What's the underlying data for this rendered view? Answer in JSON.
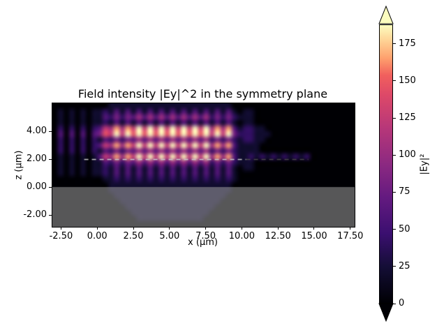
{
  "chart_data": {
    "type": "heatmap",
    "title": "Field intensity |Ey|^2 in the symmetry plane",
    "xlabel": "x (µm)",
    "ylabel": "z (µm)",
    "x_ticks": [
      -2.5,
      0,
      2.5,
      5,
      7.5,
      10,
      12.5,
      15,
      17.5
    ],
    "x_tick_labels": [
      "-2.50",
      "0.00",
      "2.50",
      "5.00",
      "7.50",
      "10.00",
      "12.50",
      "15.00",
      "17.50"
    ],
    "y_ticks": [
      -2,
      0,
      2,
      4
    ],
    "y_tick_labels": [
      "-2.00",
      "0.00",
      "2.00",
      "4.00"
    ],
    "x_range": [
      -3.1,
      17.8
    ],
    "z_range": [
      -2.85,
      6.0
    ],
    "colormap": "magma",
    "colormap_stops": [
      [
        0.0,
        "#000004"
      ],
      [
        0.13,
        "#140e36"
      ],
      [
        0.25,
        "#3b0f70"
      ],
      [
        0.38,
        "#641a80"
      ],
      [
        0.5,
        "#8c2981"
      ],
      [
        0.63,
        "#b73779"
      ],
      [
        0.75,
        "#de4968"
      ],
      [
        0.82,
        "#f1605d"
      ],
      [
        0.88,
        "#fe9f6d"
      ],
      [
        0.94,
        "#fecf92"
      ],
      [
        1.0,
        "#fcfdbf"
      ]
    ],
    "value_max": 195,
    "grid_digit_scale": "digit d = intensity d/9*value_max",
    "grid_rows_top_to_bottom": [
      "000000000011111111111111111111110000000000000000000000",
      "010101011213131313131313131313131011000000000000000000",
      "010101011324243535353535353524242111000000000000000000",
      "010101011213131313131313131313131011000000000000000000",
      "020202023658586969696969696958583122110000000000000000",
      "030303034769697979797979797969694222111000000000000000",
      "020202021324243535353535353524242122110000000000000000",
      "020202023658586969696969696958583111100000000000000000",
      "020202021324243535353535353524242111100000000000000000",
      "010101013658586969696969696958583112121212121200000000",
      "010101011324243535353535353524242111000000000000000000",
      "010101011213131313131313131313131011000000000000000000",
      "010101011213131313131313131313131000000000000000000000",
      "000000000112121212121212121212121000000000000000000000",
      "000000000011111111111111111111110000000000000000000000",
      "000000000011111111111111111111110000000000000000000000",
      "000000000001111111111111111111100000000000000000000000",
      "000000000000111111111111111111000000000000000000000000",
      "000000000000011111111111111110000000000000000000000000",
      "000000000000001111111111111100000000000000000000000000",
      "000000000000000111111111111000000000000000000000000000",
      "000000000000000000000000000000000000000000000000000000"
    ],
    "overlays": {
      "substrate": {
        "z_top": 0.0,
        "color": "rgba(158,158,158,0.55)"
      },
      "dashed_line": {
        "z": 2.0,
        "x_start": -0.9,
        "x_end": 10.3,
        "color": "#c9c9c9",
        "x_end_faint": 14.6,
        "faint_color": "#4a4a4a"
      }
    },
    "colorbar": {
      "label": "|Ey|²",
      "ticks": [
        0,
        25,
        50,
        75,
        100,
        125,
        150,
        175
      ],
      "vmin": 0,
      "vmax": 188,
      "extend": "both",
      "over_color": "#fcfdbf",
      "under_color": "#000004"
    }
  }
}
